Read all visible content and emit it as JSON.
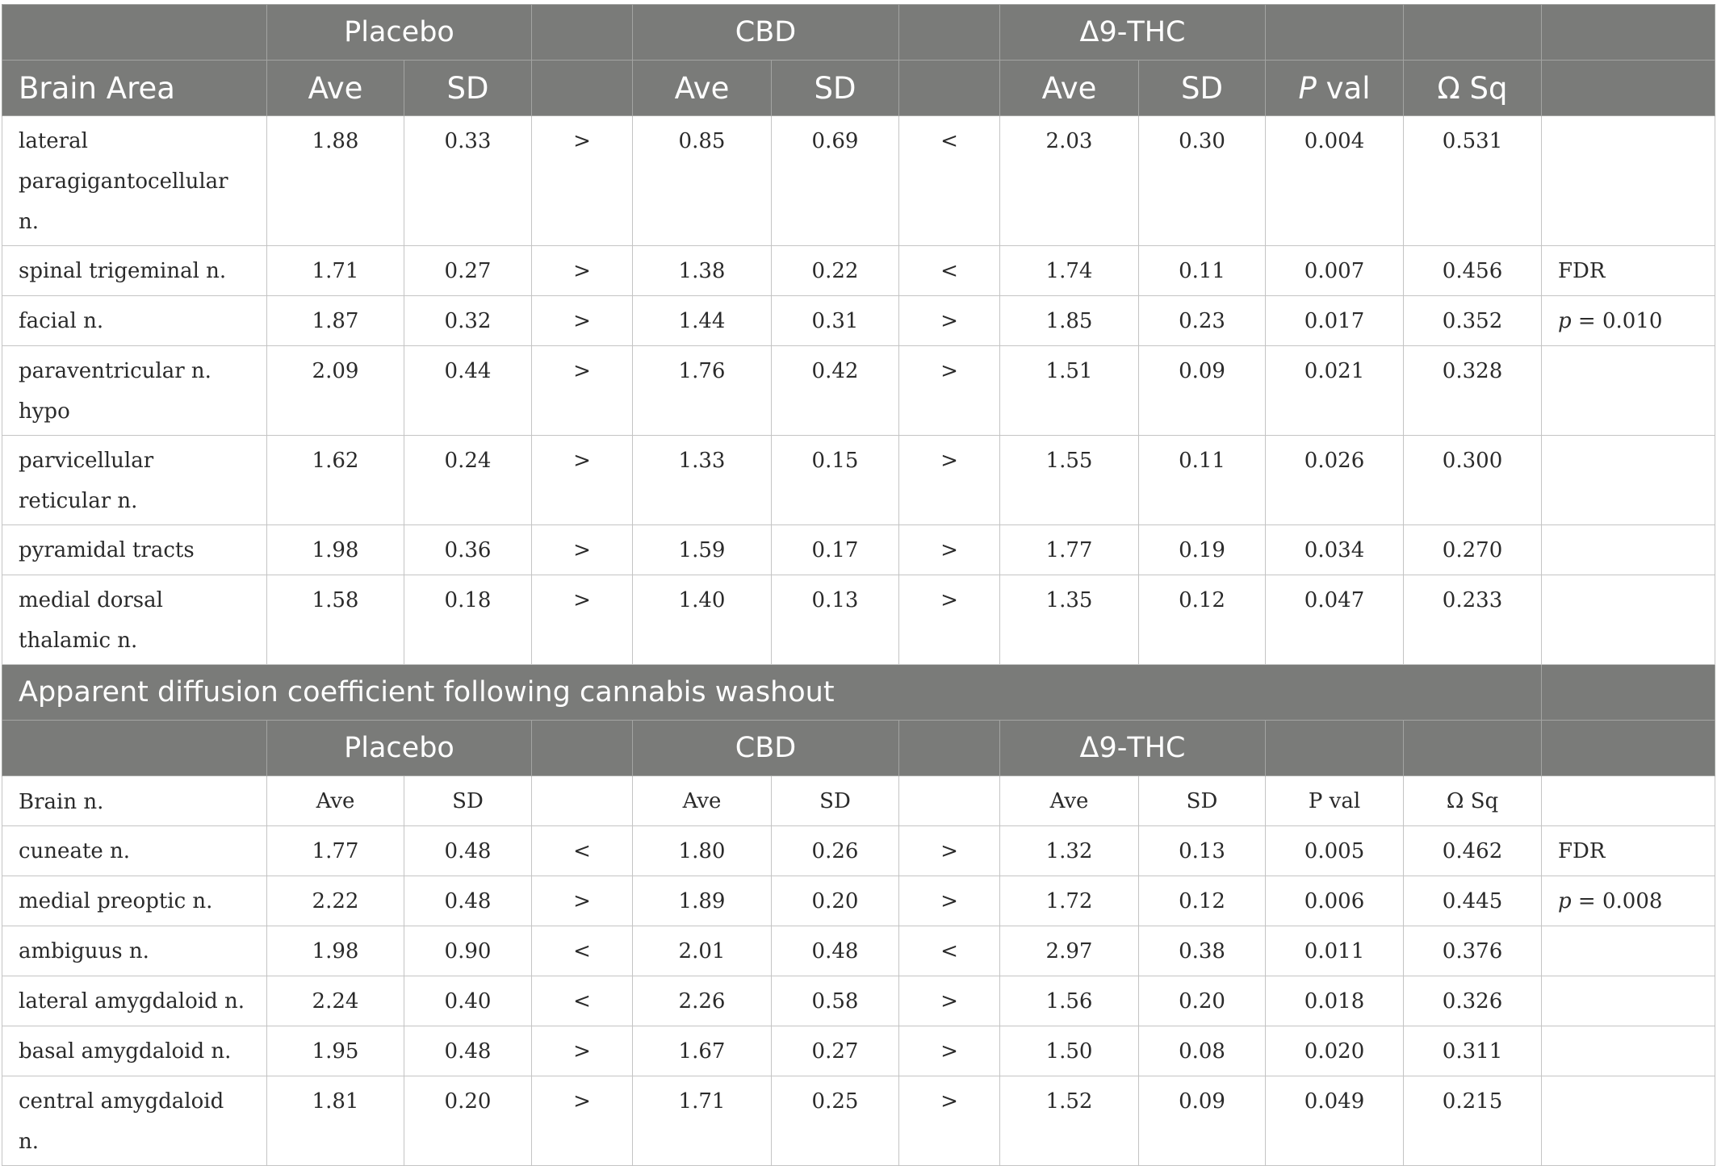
{
  "section1": {
    "groups": [
      "Placebo",
      "CBD",
      "Δ9-THC"
    ],
    "columns": {
      "brain": "Brain Area",
      "ave": "Ave",
      "sd": "SD",
      "pval_p": "P",
      "pval_rest": " val",
      "omega": "Ω Sq"
    },
    "rows": [
      {
        "area": "lateral paragigantocellular n.",
        "p_ave": "1.88",
        "p_sd": "0.33",
        "c1": ">",
        "c_ave": "0.85",
        "c_sd": "0.69",
        "c2": "<",
        "t_ave": "2.03",
        "t_sd": "0.30",
        "pval": "0.004",
        "omega": "0.531",
        "note": ""
      },
      {
        "area": "spinal trigeminal n.",
        "p_ave": "1.71",
        "p_sd": "0.27",
        "c1": ">",
        "c_ave": "1.38",
        "c_sd": "0.22",
        "c2": "<",
        "t_ave": "1.74",
        "t_sd": "0.11",
        "pval": "0.007",
        "omega": "0.456",
        "note": "FDR"
      },
      {
        "area": "facial n.",
        "p_ave": "1.87",
        "p_sd": "0.32",
        "c1": ">",
        "c_ave": "1.44",
        "c_sd": "0.31",
        "c2": ">",
        "t_ave": "1.85",
        "t_sd": "0.23",
        "pval": "0.017",
        "omega": "0.352",
        "note_p": "p",
        "note": " = 0.010"
      },
      {
        "area": "paraventricular n. hypo",
        "p_ave": "2.09",
        "p_sd": "0.44",
        "c1": ">",
        "c_ave": "1.76",
        "c_sd": "0.42",
        "c2": ">",
        "t_ave": "1.51",
        "t_sd": "0.09",
        "pval": "0.021",
        "omega": "0.328",
        "note": ""
      },
      {
        "area": "parvicellular reticular n.",
        "p_ave": "1.62",
        "p_sd": "0.24",
        "c1": ">",
        "c_ave": "1.33",
        "c_sd": "0.15",
        "c2": ">",
        "t_ave": "1.55",
        "t_sd": "0.11",
        "pval": "0.026",
        "omega": "0.300",
        "note": ""
      },
      {
        "area": "pyramidal tracts",
        "p_ave": "1.98",
        "p_sd": "0.36",
        "c1": ">",
        "c_ave": "1.59",
        "c_sd": "0.17",
        "c2": ">",
        "t_ave": "1.77",
        "t_sd": "0.19",
        "pval": "0.034",
        "omega": "0.270",
        "note": ""
      },
      {
        "area": "medial dorsal thalamic n.",
        "p_ave": "1.58",
        "p_sd": "0.18",
        "c1": ">",
        "c_ave": "1.40",
        "c_sd": "0.13",
        "c2": ">",
        "t_ave": "1.35",
        "t_sd": "0.12",
        "pval": "0.047",
        "omega": "0.233",
        "note": ""
      }
    ]
  },
  "section2": {
    "title": "Apparent diffusion coefficient following cannabis washout",
    "groups": [
      "Placebo",
      "CBD",
      "Δ9-THC"
    ],
    "columns": {
      "brain": "Brain n.",
      "ave": "Ave",
      "sd": "SD",
      "pval": "P val",
      "omega": "Ω Sq"
    },
    "rows": [
      {
        "area": "cuneate n.",
        "p_ave": "1.77",
        "p_sd": "0.48",
        "c1": "<",
        "c_ave": "1.80",
        "c_sd": "0.26",
        "c2": ">",
        "t_ave": "1.32",
        "t_sd": "0.13",
        "pval": "0.005",
        "omega": "0.462",
        "note": "FDR"
      },
      {
        "area": "medial preoptic n.",
        "p_ave": "2.22",
        "p_sd": "0.48",
        "c1": ">",
        "c_ave": "1.89",
        "c_sd": "0.20",
        "c2": ">",
        "t_ave": "1.72",
        "t_sd": "0.12",
        "pval": "0.006",
        "omega": "0.445",
        "note_p": "p",
        "note": " = 0.008"
      },
      {
        "area": "ambiguus n.",
        "p_ave": "1.98",
        "p_sd": "0.90",
        "c1": "<",
        "c_ave": "2.01",
        "c_sd": "0.48",
        "c2": "<",
        "t_ave": "2.97",
        "t_sd": "0.38",
        "pval": "0.011",
        "omega": "0.376",
        "note": ""
      },
      {
        "area": "lateral amygdaloid n.",
        "p_ave": "2.24",
        "p_sd": "0.40",
        "c1": "<",
        "c_ave": "2.26",
        "c_sd": "0.58",
        "c2": ">",
        "t_ave": "1.56",
        "t_sd": "0.20",
        "pval": "0.018",
        "omega": "0.326",
        "note": ""
      },
      {
        "area": "basal amygdaloid n.",
        "p_ave": "1.95",
        "p_sd": "0.48",
        "c1": ">",
        "c_ave": "1.67",
        "c_sd": "0.27",
        "c2": ">",
        "t_ave": "1.50",
        "t_sd": "0.08",
        "pval": "0.020",
        "omega": "0.311",
        "note": ""
      },
      {
        "area": "central amygdaloid n.",
        "p_ave": "1.81",
        "p_sd": "0.20",
        "c1": ">",
        "c_ave": "1.71",
        "c_sd": "0.25",
        "c2": ">",
        "t_ave": "1.52",
        "t_sd": "0.09",
        "pval": "0.049",
        "omega": "0.215",
        "note": ""
      }
    ]
  }
}
